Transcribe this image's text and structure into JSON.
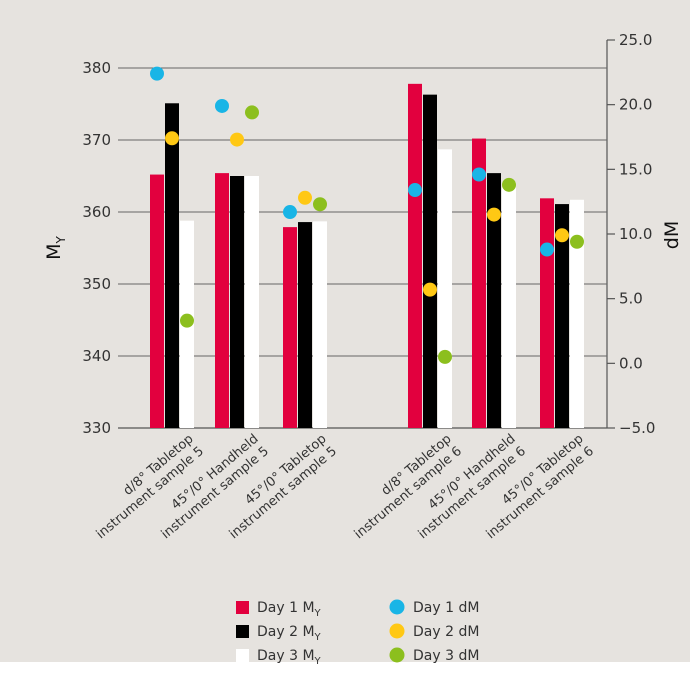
{
  "chart_data": {
    "type": "bar",
    "categories": [
      [
        "d/8° Tabletop",
        "instrument sample 5"
      ],
      [
        "45°/0° Handheld",
        "instrument sample 5"
      ],
      [
        "45°/0° Tabletop",
        "instrument sample 5"
      ],
      [
        "d/8° Tabletop",
        "instrument sample 6"
      ],
      [
        "45°/0° Handheld",
        "instrument sample 6"
      ],
      [
        "45°/0° Tabletop",
        "instrument sample 6"
      ]
    ],
    "ylabel_left": {
      "main": "M",
      "sub": "Y"
    },
    "ylabel_right": "dM",
    "ylim_left": [
      330,
      380
    ],
    "yticks_left": [
      "330",
      "340",
      "350",
      "360",
      "370",
      "380"
    ],
    "ylim_right": [
      -5,
      25
    ],
    "yticks_right": [
      "−5.0",
      "0.0",
      "5.0",
      "10.0",
      "15.0",
      "20.0",
      "25.0"
    ],
    "bar_series": [
      {
        "name": "Day 1 M",
        "sub": "Y",
        "color": "#e2003e",
        "values": [
          365.2,
          365.4,
          357.9,
          377.8,
          370.2,
          361.9
        ]
      },
      {
        "name": "Day 2 M",
        "sub": "Y",
        "color": "#000000",
        "values": [
          375.1,
          365.0,
          358.6,
          376.3,
          365.4,
          361.1
        ]
      },
      {
        "name": "Day 3 M",
        "sub": "Y",
        "color": "#ffffff",
        "values": [
          358.8,
          365.0,
          358.7,
          368.7,
          364.1,
          361.7
        ]
      }
    ],
    "point_series": [
      {
        "name": "Day 1 dM",
        "color": "#19b5e6",
        "values": [
          22.4,
          19.9,
          11.7,
          13.4,
          14.6,
          8.8
        ]
      },
      {
        "name": "Day 2 dM",
        "color": "#ffc814",
        "values": [
          17.4,
          17.3,
          12.8,
          5.7,
          11.5,
          9.9
        ]
      },
      {
        "name": "Day 3 dM",
        "color": "#8cbf1e",
        "values": [
          3.3,
          19.4,
          12.3,
          0.5,
          13.8,
          9.4
        ]
      }
    ],
    "background_color": "#e6e3df",
    "grid": false
  }
}
